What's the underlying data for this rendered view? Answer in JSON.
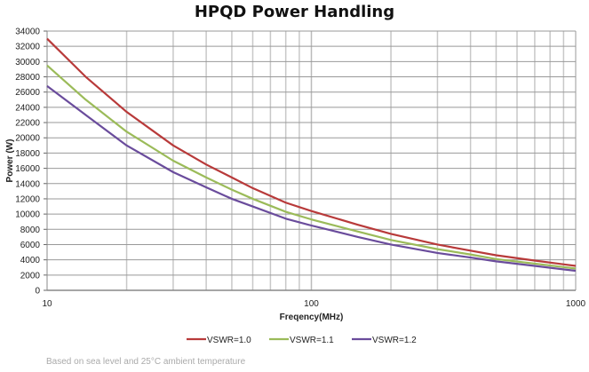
{
  "chart_data": {
    "type": "line",
    "title": "HPQD Power Handling",
    "xlabel": "Freqency(MHz)",
    "ylabel": "Power (W)",
    "xscale": "log",
    "xlim": [
      10,
      1000
    ],
    "ylim": [
      0,
      34000
    ],
    "x_ticks": [
      "10",
      "100",
      "1000"
    ],
    "y_ticks": [
      0,
      2000,
      4000,
      6000,
      8000,
      10000,
      12000,
      14000,
      16000,
      18000,
      20000,
      22000,
      24000,
      26000,
      28000,
      30000,
      32000,
      34000
    ],
    "grid": true,
    "legend_position": "bottom",
    "x": [
      10,
      14,
      20,
      30,
      40,
      50,
      60,
      80,
      100,
      150,
      200,
      300,
      400,
      500,
      700,
      1000
    ],
    "series": [
      {
        "name": "VSWR=1.0",
        "color": "#b83a3a",
        "values": [
          33000,
          28000,
          23400,
          19000,
          16500,
          14800,
          13400,
          11500,
          10400,
          8600,
          7400,
          6000,
          5200,
          4600,
          3900,
          3200
        ]
      },
      {
        "name": "VSWR=1.1",
        "color": "#9bbb59",
        "values": [
          29500,
          25000,
          20800,
          17000,
          14800,
          13200,
          12000,
          10300,
          9300,
          7700,
          6600,
          5400,
          4700,
          4100,
          3500,
          2850
        ]
      },
      {
        "name": "VSWR=1.2",
        "color": "#6a4c9c",
        "values": [
          26800,
          23000,
          19000,
          15500,
          13500,
          12000,
          11000,
          9400,
          8500,
          7000,
          6000,
          4900,
          4300,
          3800,
          3200,
          2560
        ]
      }
    ]
  },
  "footnote": "Based on sea level and 25°C ambient temperature"
}
